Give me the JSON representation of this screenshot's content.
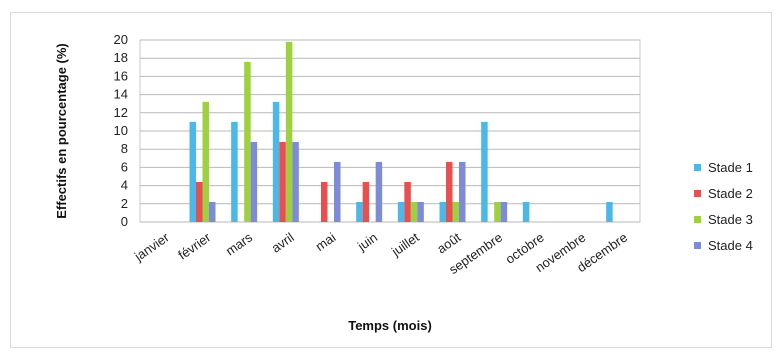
{
  "chart_data": {
    "type": "bar",
    "title": "",
    "xlabel": "Temps (mois)",
    "ylabel": "Effectifs en pourcentage (%)",
    "ylim": [
      0,
      20
    ],
    "yticks": [
      0,
      2,
      4,
      6,
      8,
      10,
      12,
      14,
      16,
      18,
      20
    ],
    "grid": true,
    "legend_position": "right",
    "categories": [
      "janvier",
      "février",
      "mars",
      "avril",
      "mai",
      "juin",
      "juillet",
      "août",
      "septembre",
      "octobre",
      "novembre",
      "décembre"
    ],
    "series": [
      {
        "name": "Stade 1",
        "color": "#4bb8e8",
        "values": [
          0,
          11,
          11,
          13.2,
          0,
          2.2,
          2.2,
          2.2,
          11,
          2.2,
          0,
          2.2
        ]
      },
      {
        "name": "Stade 2",
        "color": "#e8504f",
        "values": [
          0,
          4.4,
          0,
          8.8,
          4.4,
          4.4,
          4.4,
          6.6,
          0,
          0,
          0,
          0
        ]
      },
      {
        "name": "Stade 3",
        "color": "#9fd040",
        "values": [
          0,
          13.2,
          17.6,
          19.8,
          0,
          0,
          2.2,
          2.2,
          2.2,
          0,
          0,
          0
        ]
      },
      {
        "name": "Stade 4",
        "color": "#7e8bd6",
        "values": [
          0,
          2.2,
          8.8,
          8.8,
          6.6,
          6.6,
          2.2,
          6.6,
          2.2,
          0,
          0,
          0
        ]
      }
    ]
  }
}
